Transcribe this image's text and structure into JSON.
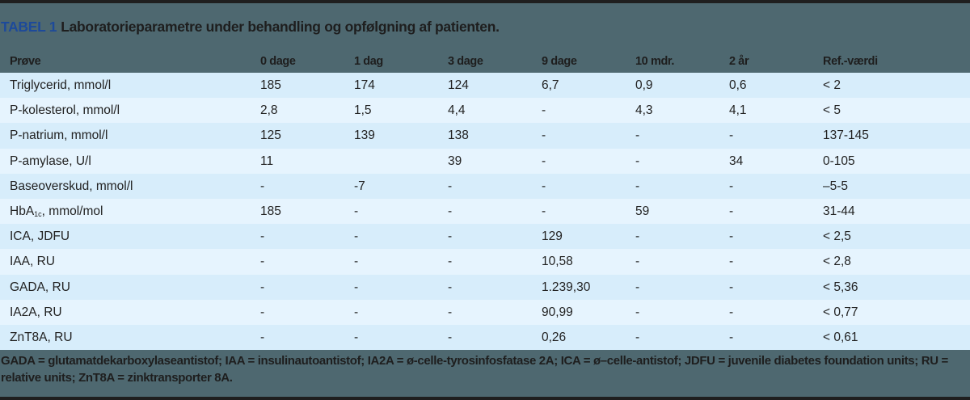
{
  "caption": {
    "label": "TABEL 1",
    "title": "Laboratorieparametre under behandling og opfølgning af patienten."
  },
  "colors": {
    "background": "#4e6870",
    "label": "#1d4a9a",
    "row_odd": "#d7edfb",
    "row_even": "#e6f4fe",
    "border": "#1f1f1f"
  },
  "table": {
    "headers": [
      "Prøve",
      "0 dage",
      "1 dag",
      "3 dage",
      "9 dage",
      "10 mdr.",
      "2 år",
      "Ref.-værdi"
    ],
    "rows": [
      {
        "name": "Triglycerid, mmol/l",
        "values": [
          "185",
          "174",
          "124",
          "6,7",
          "0,9",
          "0,6",
          "< 2"
        ]
      },
      {
        "name": "P-kolesterol, mmol/l",
        "values": [
          "2,8",
          "1,5",
          "4,4",
          "-",
          "4,3",
          "4,1",
          "< 5"
        ]
      },
      {
        "name": "P-natrium, mmol/l",
        "values": [
          "125",
          "139",
          "138",
          "-",
          "-",
          "-",
          "137-145"
        ]
      },
      {
        "name": "P-amylase, U/l",
        "values": [
          "11",
          "",
          "39",
          "-",
          "-",
          "34",
          "0-105"
        ]
      },
      {
        "name": "Baseoverskud, mmol/l",
        "values": [
          "-",
          "-7",
          "-",
          "-",
          "-",
          "-",
          "–5-5"
        ]
      },
      {
        "name_main": "HbA",
        "name_sub": "1c",
        "name_rest": ", mmol/mol",
        "values": [
          "185",
          "-",
          "-",
          "-",
          "59",
          "-",
          "31-44"
        ]
      },
      {
        "name": "ICA, JDFU",
        "values": [
          "-",
          "-",
          "-",
          "129",
          "-",
          "-",
          "< 2,5"
        ]
      },
      {
        "name": "IAA, RU",
        "values": [
          "-",
          "-",
          "-",
          "10,58",
          "-",
          "-",
          "< 2,8"
        ]
      },
      {
        "name": "GADA, RU",
        "values": [
          "-",
          "-",
          "-",
          "1.239,30",
          "-",
          "-",
          "< 5,36"
        ]
      },
      {
        "name": "IA2A, RU",
        "values": [
          "-",
          "-",
          "-",
          "90,99",
          "-",
          "-",
          "< 0,77"
        ]
      },
      {
        "name": "ZnT8A, RU",
        "values": [
          "-",
          "-",
          "-",
          "0,26",
          "-",
          "-",
          "< 0,61"
        ]
      }
    ]
  },
  "footnote": "GADA = glutamatdekarboxylaseantistof; IAA = insulinautoantistof; IA2A = ø-celle-tyrosinfosfatase 2A; ICA = ø–celle-antistof; JDFU = juvenile diabetes foundation units; RU = relative units; ZnT8A = zinktransporter 8A."
}
